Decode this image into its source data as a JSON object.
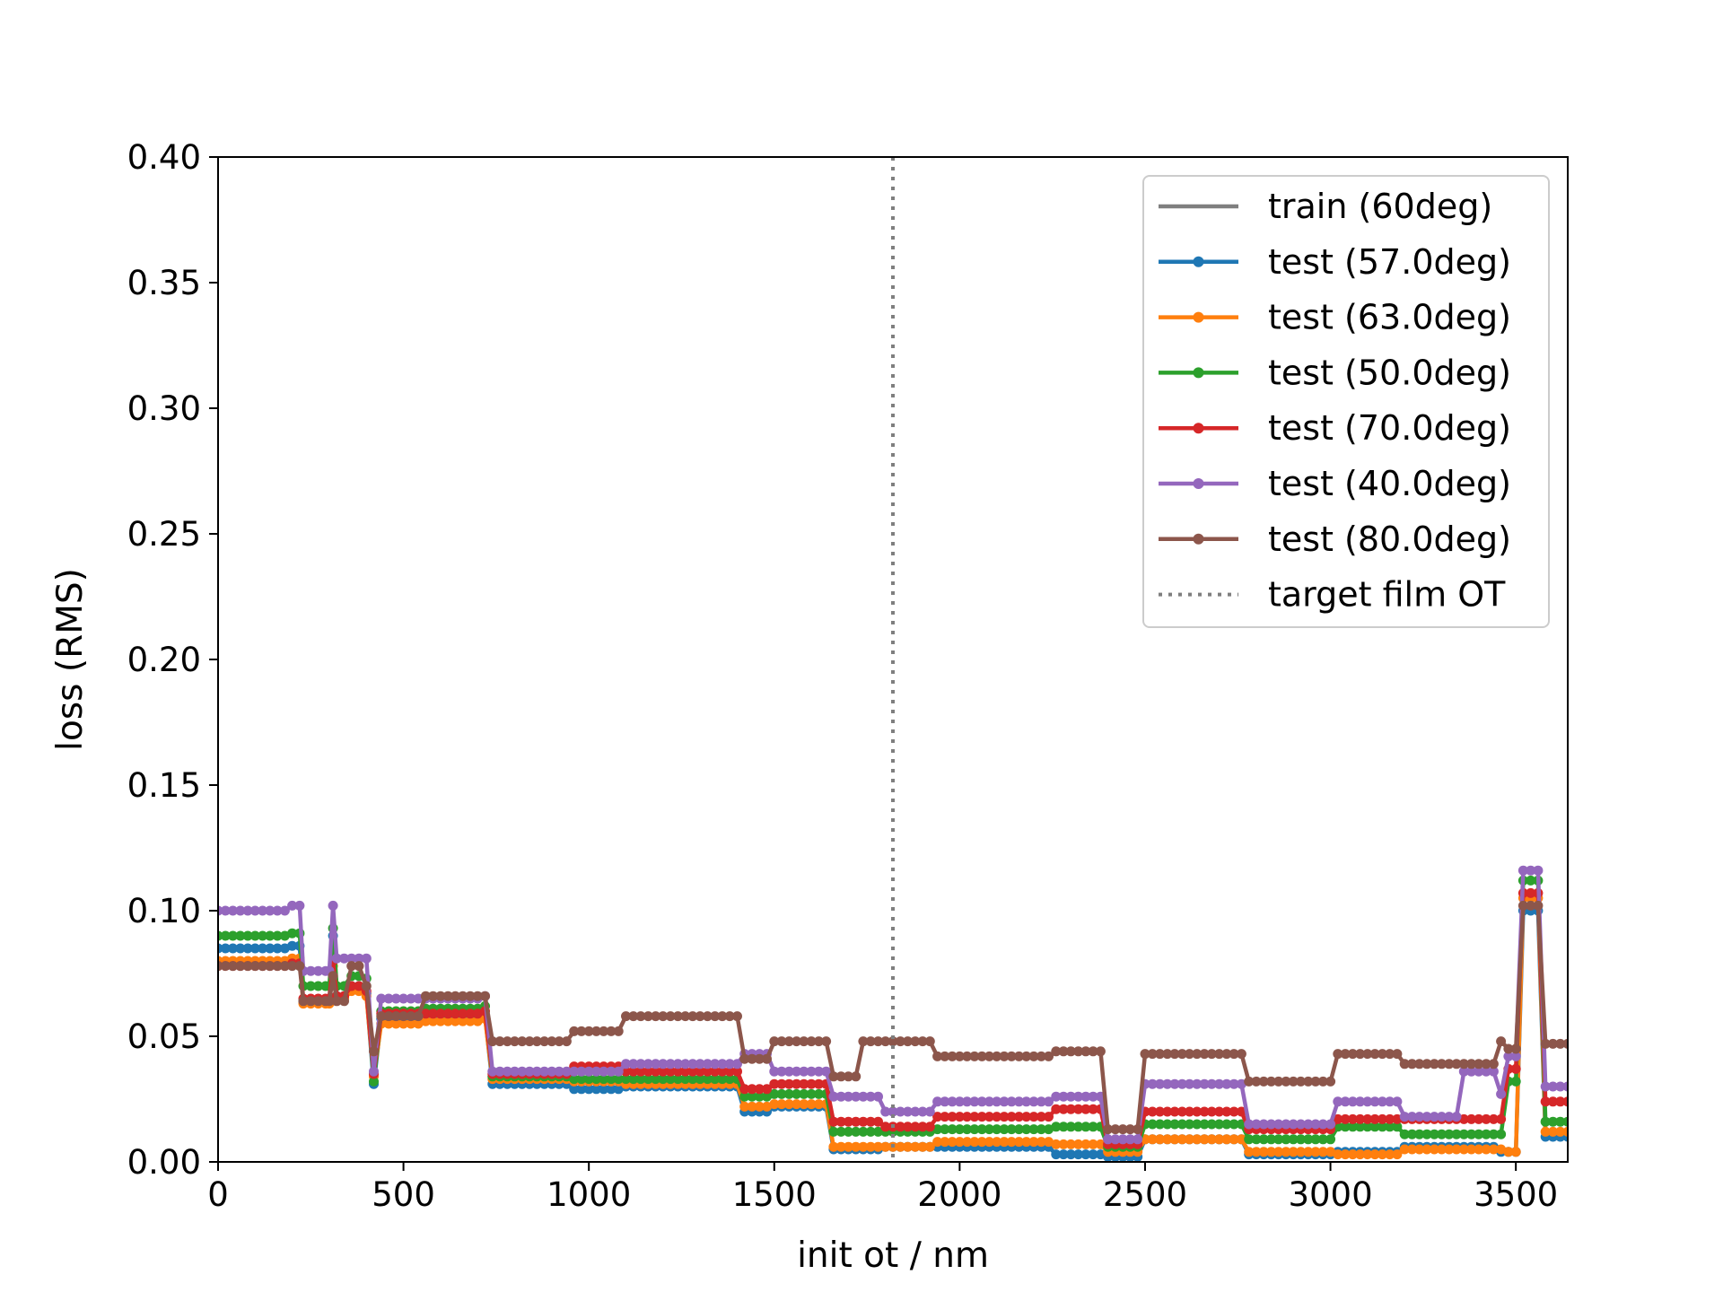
{
  "chart_data": {
    "type": "line",
    "title": "",
    "xlabel": "init ot / nm",
    "ylabel": "loss (RMS)",
    "xlim": [
      0,
      3640
    ],
    "ylim": [
      0,
      0.4
    ],
    "xticks": [
      0,
      500,
      1000,
      1500,
      2000,
      2500,
      3000,
      3500
    ],
    "yticks": [
      0.0,
      0.05,
      0.1,
      0.15,
      0.2,
      0.25,
      0.3,
      0.35,
      0.4
    ],
    "xtick_labels": [
      "0",
      "500",
      "1000",
      "1500",
      "2000",
      "2500",
      "3000",
      "3500"
    ],
    "ytick_labels": [
      "0.00",
      "0.05",
      "0.10",
      "0.15",
      "0.20",
      "0.25",
      "0.30",
      "0.35",
      "0.40"
    ],
    "grid": false,
    "legend_position": "top-right",
    "step_x": 20,
    "target_line": {
      "name": "target film OT",
      "x": 1820,
      "color": "#7f7f7f",
      "style": "dotted"
    },
    "train": {
      "name": "train (60deg)",
      "color": "#7f7f7f"
    },
    "series": [
      {
        "name": "test (57.0deg)",
        "color": "#1f77b4",
        "knots": [
          [
            0,
            0.085
          ],
          [
            200,
            0.086
          ],
          [
            230,
            0.064
          ],
          [
            300,
            0.064
          ],
          [
            310,
            0.09
          ],
          [
            320,
            0.066
          ],
          [
            360,
            0.07
          ],
          [
            400,
            0.067
          ],
          [
            420,
            0.031
          ],
          [
            440,
            0.057
          ],
          [
            560,
            0.058
          ],
          [
            720,
            0.058
          ],
          [
            740,
            0.031
          ],
          [
            920,
            0.031
          ],
          [
            960,
            0.029
          ],
          [
            1080,
            0.029
          ],
          [
            1100,
            0.03
          ],
          [
            1400,
            0.03
          ],
          [
            1420,
            0.02
          ],
          [
            1480,
            0.02
          ],
          [
            1500,
            0.022
          ],
          [
            1640,
            0.022
          ],
          [
            1660,
            0.005
          ],
          [
            1780,
            0.005
          ],
          [
            1800,
            0.006
          ],
          [
            1920,
            0.006
          ],
          [
            1940,
            0.006
          ],
          [
            2240,
            0.006
          ],
          [
            2260,
            0.003
          ],
          [
            2380,
            0.003
          ],
          [
            2400,
            0.002
          ],
          [
            2480,
            0.002
          ],
          [
            2500,
            0.009
          ],
          [
            2760,
            0.009
          ],
          [
            2780,
            0.003
          ],
          [
            3000,
            0.003
          ],
          [
            3020,
            0.004
          ],
          [
            3180,
            0.004
          ],
          [
            3200,
            0.006
          ],
          [
            3440,
            0.006
          ],
          [
            3460,
            0.004
          ],
          [
            3480,
            0.004
          ],
          [
            3500,
            0.004
          ],
          [
            3520,
            0.1
          ],
          [
            3560,
            0.1
          ],
          [
            3580,
            0.01
          ],
          [
            3640,
            0.01
          ]
        ]
      },
      {
        "name": "test (63.0deg)",
        "color": "#ff7f0e",
        "knots": [
          [
            0,
            0.08
          ],
          [
            200,
            0.081
          ],
          [
            230,
            0.063
          ],
          [
            300,
            0.063
          ],
          [
            310,
            0.078
          ],
          [
            320,
            0.065
          ],
          [
            360,
            0.068
          ],
          [
            400,
            0.066
          ],
          [
            420,
            0.034
          ],
          [
            440,
            0.055
          ],
          [
            560,
            0.056
          ],
          [
            720,
            0.057
          ],
          [
            740,
            0.033
          ],
          [
            920,
            0.033
          ],
          [
            960,
            0.032
          ],
          [
            1080,
            0.032
          ],
          [
            1100,
            0.031
          ],
          [
            1400,
            0.031
          ],
          [
            1420,
            0.022
          ],
          [
            1480,
            0.022
          ],
          [
            1500,
            0.023
          ],
          [
            1640,
            0.023
          ],
          [
            1660,
            0.006
          ],
          [
            1780,
            0.006
          ],
          [
            1800,
            0.006
          ],
          [
            1920,
            0.006
          ],
          [
            1940,
            0.008
          ],
          [
            2240,
            0.008
          ],
          [
            2260,
            0.007
          ],
          [
            2380,
            0.007
          ],
          [
            2400,
            0.004
          ],
          [
            2480,
            0.004
          ],
          [
            2500,
            0.009
          ],
          [
            2760,
            0.009
          ],
          [
            2780,
            0.004
          ],
          [
            3000,
            0.004
          ],
          [
            3020,
            0.003
          ],
          [
            3180,
            0.003
          ],
          [
            3200,
            0.005
          ],
          [
            3440,
            0.005
          ],
          [
            3460,
            0.005
          ],
          [
            3480,
            0.004
          ],
          [
            3500,
            0.004
          ],
          [
            3520,
            0.105
          ],
          [
            3560,
            0.105
          ],
          [
            3580,
            0.012
          ],
          [
            3640,
            0.012
          ]
        ]
      },
      {
        "name": "test (50.0deg)",
        "color": "#2ca02c",
        "knots": [
          [
            0,
            0.09
          ],
          [
            200,
            0.091
          ],
          [
            230,
            0.07
          ],
          [
            300,
            0.07
          ],
          [
            310,
            0.093
          ],
          [
            320,
            0.07
          ],
          [
            360,
            0.074
          ],
          [
            400,
            0.073
          ],
          [
            420,
            0.032
          ],
          [
            440,
            0.06
          ],
          [
            560,
            0.061
          ],
          [
            720,
            0.062
          ],
          [
            740,
            0.034
          ],
          [
            920,
            0.034
          ],
          [
            960,
            0.033
          ],
          [
            1080,
            0.033
          ],
          [
            1100,
            0.033
          ],
          [
            1400,
            0.033
          ],
          [
            1420,
            0.026
          ],
          [
            1480,
            0.026
          ],
          [
            1500,
            0.027
          ],
          [
            1640,
            0.027
          ],
          [
            1660,
            0.012
          ],
          [
            1780,
            0.012
          ],
          [
            1800,
            0.012
          ],
          [
            1920,
            0.012
          ],
          [
            1940,
            0.013
          ],
          [
            2240,
            0.013
          ],
          [
            2260,
            0.014
          ],
          [
            2380,
            0.014
          ],
          [
            2400,
            0.006
          ],
          [
            2480,
            0.006
          ],
          [
            2500,
            0.015
          ],
          [
            2760,
            0.015
          ],
          [
            2780,
            0.009
          ],
          [
            3000,
            0.009
          ],
          [
            3020,
            0.014
          ],
          [
            3180,
            0.014
          ],
          [
            3200,
            0.011
          ],
          [
            3440,
            0.011
          ],
          [
            3460,
            0.011
          ],
          [
            3480,
            0.032
          ],
          [
            3500,
            0.032
          ],
          [
            3520,
            0.112
          ],
          [
            3560,
            0.112
          ],
          [
            3580,
            0.016
          ],
          [
            3640,
            0.016
          ]
        ]
      },
      {
        "name": "test (70.0deg)",
        "color": "#d62728",
        "knots": [
          [
            0,
            0.078
          ],
          [
            200,
            0.079
          ],
          [
            230,
            0.065
          ],
          [
            300,
            0.065
          ],
          [
            310,
            0.08
          ],
          [
            320,
            0.066
          ],
          [
            360,
            0.07
          ],
          [
            400,
            0.068
          ],
          [
            420,
            0.035
          ],
          [
            440,
            0.059
          ],
          [
            560,
            0.059
          ],
          [
            720,
            0.06
          ],
          [
            740,
            0.035
          ],
          [
            920,
            0.035
          ],
          [
            960,
            0.038
          ],
          [
            1080,
            0.038
          ],
          [
            1100,
            0.036
          ],
          [
            1400,
            0.036
          ],
          [
            1420,
            0.029
          ],
          [
            1480,
            0.029
          ],
          [
            1500,
            0.031
          ],
          [
            1640,
            0.031
          ],
          [
            1660,
            0.016
          ],
          [
            1780,
            0.016
          ],
          [
            1800,
            0.014
          ],
          [
            1920,
            0.014
          ],
          [
            1940,
            0.018
          ],
          [
            2240,
            0.018
          ],
          [
            2260,
            0.021
          ],
          [
            2380,
            0.021
          ],
          [
            2400,
            0.007
          ],
          [
            2480,
            0.007
          ],
          [
            2500,
            0.02
          ],
          [
            2760,
            0.02
          ],
          [
            2780,
            0.013
          ],
          [
            3000,
            0.013
          ],
          [
            3020,
            0.017
          ],
          [
            3180,
            0.017
          ],
          [
            3200,
            0.017
          ],
          [
            3440,
            0.017
          ],
          [
            3460,
            0.017
          ],
          [
            3480,
            0.037
          ],
          [
            3500,
            0.037
          ],
          [
            3520,
            0.107
          ],
          [
            3560,
            0.107
          ],
          [
            3580,
            0.024
          ],
          [
            3640,
            0.024
          ]
        ]
      },
      {
        "name": "test (40.0deg)",
        "color": "#9467bd",
        "knots": [
          [
            0,
            0.1
          ],
          [
            200,
            0.102
          ],
          [
            230,
            0.076
          ],
          [
            300,
            0.076
          ],
          [
            310,
            0.102
          ],
          [
            320,
            0.081
          ],
          [
            360,
            0.081
          ],
          [
            400,
            0.081
          ],
          [
            420,
            0.036
          ],
          [
            440,
            0.065
          ],
          [
            560,
            0.065
          ],
          [
            720,
            0.066
          ],
          [
            740,
            0.036
          ],
          [
            920,
            0.036
          ],
          [
            960,
            0.036
          ],
          [
            1080,
            0.036
          ],
          [
            1100,
            0.039
          ],
          [
            1400,
            0.039
          ],
          [
            1420,
            0.043
          ],
          [
            1480,
            0.043
          ],
          [
            1500,
            0.036
          ],
          [
            1640,
            0.036
          ],
          [
            1660,
            0.026
          ],
          [
            1780,
            0.026
          ],
          [
            1800,
            0.02
          ],
          [
            1920,
            0.02
          ],
          [
            1940,
            0.024
          ],
          [
            2240,
            0.024
          ],
          [
            2260,
            0.026
          ],
          [
            2380,
            0.026
          ],
          [
            2400,
            0.009
          ],
          [
            2480,
            0.009
          ],
          [
            2500,
            0.031
          ],
          [
            2760,
            0.031
          ],
          [
            2780,
            0.015
          ],
          [
            3000,
            0.015
          ],
          [
            3020,
            0.024
          ],
          [
            3180,
            0.024
          ],
          [
            3200,
            0.018
          ],
          [
            3340,
            0.018
          ],
          [
            3360,
            0.036
          ],
          [
            3440,
            0.036
          ],
          [
            3460,
            0.027
          ],
          [
            3480,
            0.042
          ],
          [
            3500,
            0.042
          ],
          [
            3520,
            0.116
          ],
          [
            3560,
            0.116
          ],
          [
            3580,
            0.03
          ],
          [
            3640,
            0.03
          ]
        ]
      },
      {
        "name": "test (80.0deg)",
        "color": "#8c564b",
        "knots": [
          [
            0,
            0.078
          ],
          [
            200,
            0.078
          ],
          [
            230,
            0.064
          ],
          [
            300,
            0.064
          ],
          [
            310,
            0.074
          ],
          [
            320,
            0.064
          ],
          [
            360,
            0.078
          ],
          [
            400,
            0.07
          ],
          [
            420,
            0.044
          ],
          [
            440,
            0.058
          ],
          [
            560,
            0.066
          ],
          [
            720,
            0.066
          ],
          [
            740,
            0.048
          ],
          [
            920,
            0.048
          ],
          [
            960,
            0.052
          ],
          [
            1080,
            0.052
          ],
          [
            1100,
            0.058
          ],
          [
            1400,
            0.058
          ],
          [
            1420,
            0.041
          ],
          [
            1480,
            0.041
          ],
          [
            1500,
            0.048
          ],
          [
            1640,
            0.048
          ],
          [
            1660,
            0.034
          ],
          [
            1720,
            0.034
          ],
          [
            1740,
            0.048
          ],
          [
            1920,
            0.048
          ],
          [
            1940,
            0.042
          ],
          [
            2240,
            0.042
          ],
          [
            2260,
            0.044
          ],
          [
            2380,
            0.044
          ],
          [
            2400,
            0.013
          ],
          [
            2480,
            0.013
          ],
          [
            2500,
            0.043
          ],
          [
            2760,
            0.043
          ],
          [
            2780,
            0.032
          ],
          [
            3000,
            0.032
          ],
          [
            3020,
            0.043
          ],
          [
            3180,
            0.043
          ],
          [
            3200,
            0.039
          ],
          [
            3440,
            0.039
          ],
          [
            3460,
            0.048
          ],
          [
            3480,
            0.045
          ],
          [
            3500,
            0.045
          ],
          [
            3520,
            0.102
          ],
          [
            3560,
            0.102
          ],
          [
            3580,
            0.047
          ],
          [
            3640,
            0.047
          ]
        ]
      }
    ]
  }
}
